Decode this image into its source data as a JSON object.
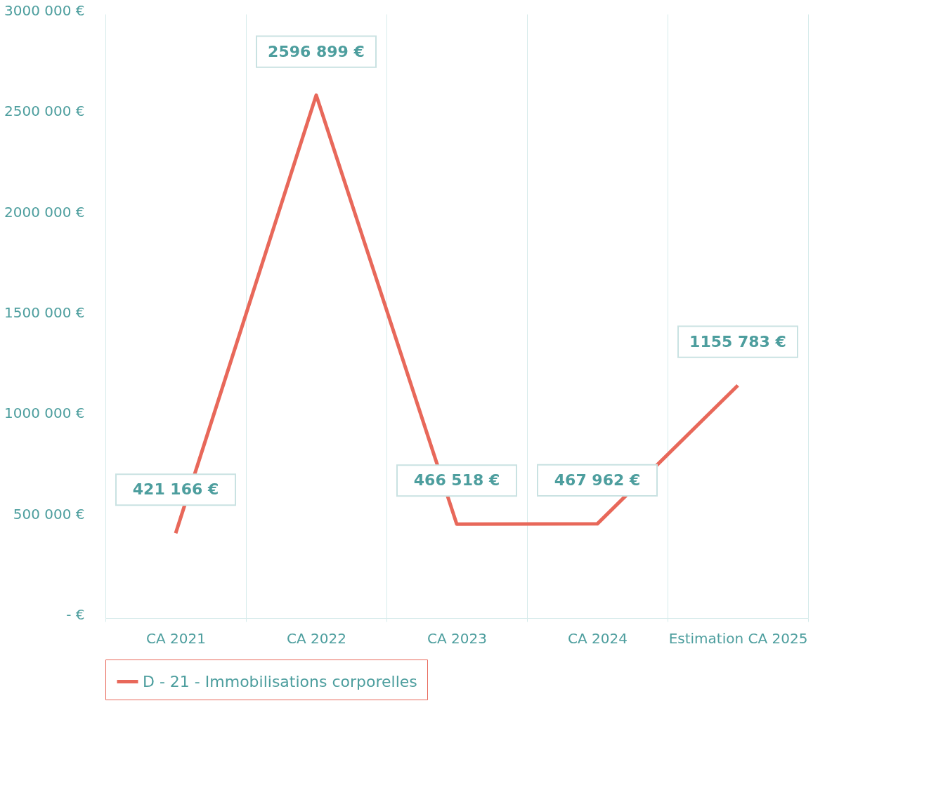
{
  "chart_data": {
    "type": "line",
    "categories": [
      "CA 2021",
      "CA 2022",
      "CA 2023",
      "CA 2024",
      "Estimation CA 2025"
    ],
    "series": [
      {
        "name": "D - 21 - Immobilisations corporelles",
        "color": "#e8685a",
        "values": [
          421166,
          2596899,
          466518,
          467962,
          1155783
        ],
        "value_labels": [
          "421 166 €",
          "2596 899 €",
          "466 518 €",
          "467 962 €",
          "1155 783 €"
        ]
      }
    ],
    "ylim": [
      0,
      3000000
    ],
    "yticks": [
      {
        "value": 0,
        "label": "-   €"
      },
      {
        "value": 500000,
        "label": "500 000 €"
      },
      {
        "value": 1000000,
        "label": "1000 000 €"
      },
      {
        "value": 1500000,
        "label": "1500 000 €"
      },
      {
        "value": 2000000,
        "label": "2000 000 €"
      },
      {
        "value": 2500000,
        "label": "2500 000 €"
      },
      {
        "value": 3000000,
        "label": "3000 000 €"
      }
    ],
    "grid": "x",
    "legend": "bottom",
    "marker": "none",
    "line_style": "solid"
  }
}
